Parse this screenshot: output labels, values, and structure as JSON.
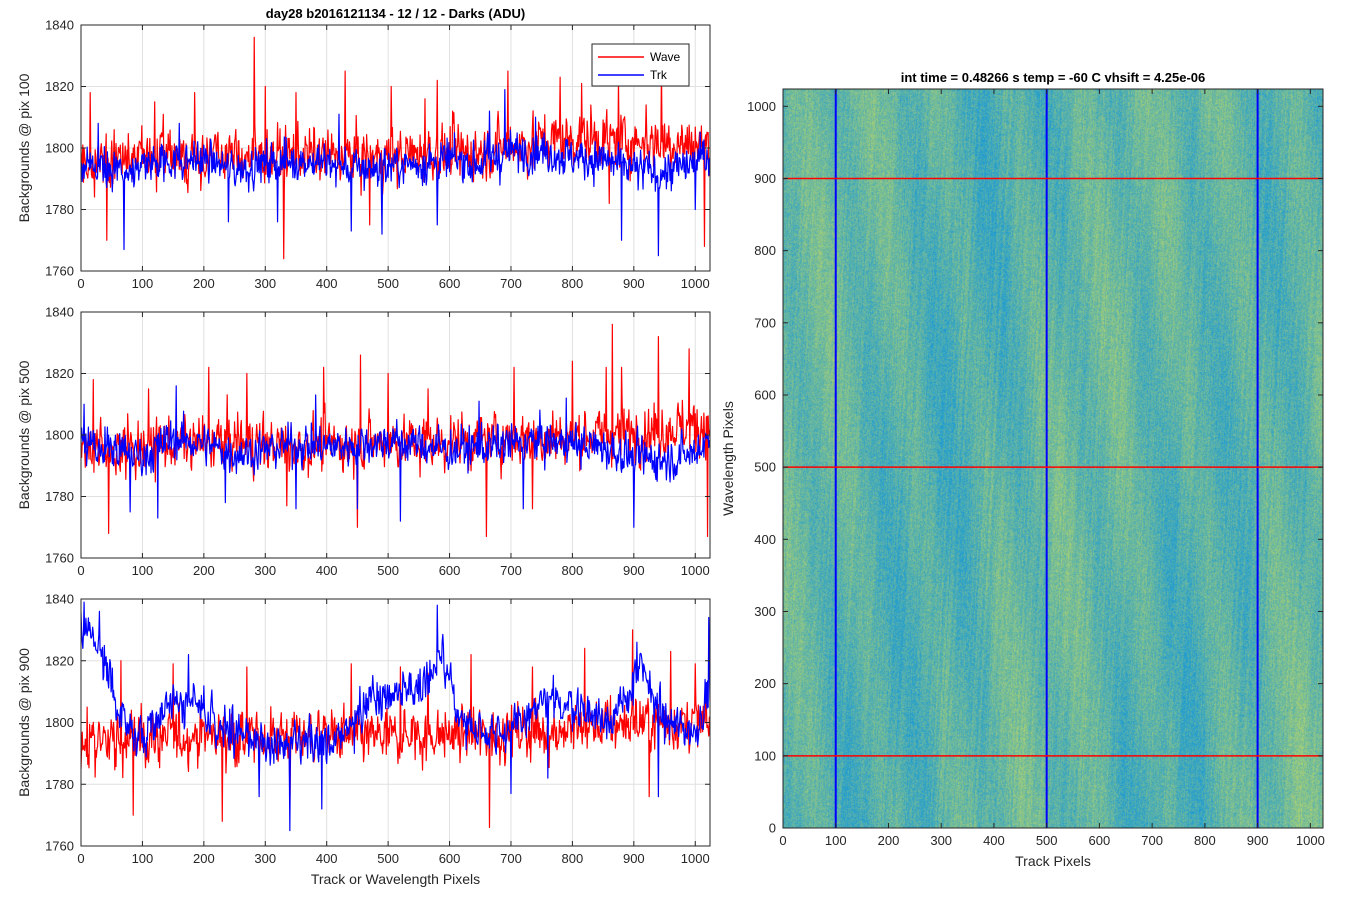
{
  "chart_data": [
    {
      "type": "line",
      "title": "day28 b2016121134 - 12 / 12 - Darks (ADU)",
      "xlabel": "",
      "ylabel": "Backgrounds @ pix 100",
      "xlim": [
        0,
        1024
      ],
      "ylim": [
        1760,
        1840
      ],
      "xticks": [
        0,
        100,
        200,
        300,
        400,
        500,
        600,
        700,
        800,
        900,
        1000
      ],
      "yticks": [
        1760,
        1780,
        1800,
        1820,
        1840
      ],
      "grid": true,
      "legend": "top-right",
      "legend_entries": [
        "Wave",
        "Trk"
      ],
      "series": [
        {
          "name": "Wave",
          "color": "#ff0000",
          "x": [
            0,
            50,
            100,
            150,
            200,
            250,
            300,
            350,
            400,
            450,
            500,
            550,
            600,
            650,
            700,
            750,
            800,
            850,
            900,
            950,
            1000,
            1024
          ],
          "y": [
            1795,
            1796,
            1797,
            1798,
            1797,
            1798,
            1797,
            1798,
            1797,
            1797,
            1797,
            1798,
            1798,
            1799,
            1801,
            1802,
            1803,
            1803,
            1802,
            1802,
            1801,
            1801
          ],
          "noise": 8,
          "spikes": [
            [
              15,
              1818
            ],
            [
              42,
              1770
            ],
            [
              120,
              1815
            ],
            [
              185,
              1818
            ],
            [
              282,
              1836
            ],
            [
              300,
              1820
            ],
            [
              330,
              1764
            ],
            [
              350,
              1818
            ],
            [
              430,
              1825
            ],
            [
              470,
              1775
            ],
            [
              505,
              1820
            ],
            [
              560,
              1816
            ],
            [
              580,
              1822
            ],
            [
              605,
              1812
            ],
            [
              695,
              1825
            ],
            [
              780,
              1823
            ],
            [
              815,
              1821
            ],
            [
              860,
              1782
            ],
            [
              875,
              1822
            ],
            [
              920,
              1814
            ],
            [
              945,
              1826
            ],
            [
              1015,
              1768
            ]
          ]
        },
        {
          "name": "Trk",
          "color": "#0000ff",
          "x": [
            0,
            50,
            100,
            150,
            200,
            250,
            300,
            350,
            400,
            450,
            500,
            550,
            600,
            650,
            700,
            750,
            800,
            850,
            900,
            950,
            1000,
            1024
          ],
          "y": [
            1794,
            1792,
            1794,
            1796,
            1796,
            1793,
            1795,
            1796,
            1795,
            1793,
            1794,
            1795,
            1796,
            1795,
            1799,
            1799,
            1797,
            1796,
            1793,
            1792,
            1795,
            1799
          ],
          "noise": 6,
          "spikes": [
            [
              28,
              1808
            ],
            [
              70,
              1767
            ],
            [
              160,
              1808
            ],
            [
              240,
              1776
            ],
            [
              320,
              1776
            ],
            [
              420,
              1811
            ],
            [
              440,
              1773
            ],
            [
              490,
              1772
            ],
            [
              580,
              1775
            ],
            [
              665,
              1812
            ],
            [
              690,
              1819
            ],
            [
              740,
              1810
            ],
            [
              880,
              1770
            ],
            [
              940,
              1765
            ],
            [
              1000,
              1780
            ]
          ]
        }
      ]
    },
    {
      "type": "line",
      "title": "",
      "xlabel": "",
      "ylabel": "Backgrounds @ pix 500",
      "xlim": [
        0,
        1024
      ],
      "ylim": [
        1760,
        1840
      ],
      "xticks": [
        0,
        100,
        200,
        300,
        400,
        500,
        600,
        700,
        800,
        900,
        1000
      ],
      "yticks": [
        1760,
        1780,
        1800,
        1820,
        1840
      ],
      "grid": true,
      "series": [
        {
          "name": "Wave",
          "color": "#ff0000",
          "x": [
            0,
            50,
            100,
            150,
            200,
            250,
            300,
            350,
            400,
            450,
            500,
            550,
            600,
            650,
            700,
            750,
            800,
            850,
            900,
            950,
            1000,
            1024
          ],
          "y": [
            1795,
            1796,
            1796,
            1797,
            1797,
            1798,
            1797,
            1796,
            1797,
            1797,
            1798,
            1797,
            1798,
            1798,
            1799,
            1799,
            1800,
            1800,
            1801,
            1802,
            1803,
            1803
          ],
          "noise": 8,
          "spikes": [
            [
              20,
              1818
            ],
            [
              45,
              1768
            ],
            [
              110,
              1815
            ],
            [
              208,
              1822
            ],
            [
              270,
              1820
            ],
            [
              335,
              1777
            ],
            [
              395,
              1822
            ],
            [
              450,
              1770
            ],
            [
              455,
              1826
            ],
            [
              500,
              1820
            ],
            [
              565,
              1815
            ],
            [
              660,
              1767
            ],
            [
              705,
              1822
            ],
            [
              735,
              1776
            ],
            [
              800,
              1824
            ],
            [
              855,
              1822
            ],
            [
              865,
              1836
            ],
            [
              880,
              1822
            ],
            [
              940,
              1832
            ],
            [
              990,
              1828
            ],
            [
              1020,
              1767
            ]
          ]
        },
        {
          "name": "Trk",
          "color": "#0000ff",
          "x": [
            0,
            50,
            100,
            150,
            200,
            250,
            300,
            350,
            400,
            450,
            500,
            550,
            600,
            650,
            700,
            750,
            800,
            850,
            900,
            950,
            1000,
            1024
          ],
          "y": [
            1797,
            1795,
            1793,
            1799,
            1797,
            1794,
            1795,
            1797,
            1796,
            1797,
            1798,
            1797,
            1795,
            1796,
            1797,
            1798,
            1797,
            1796,
            1793,
            1792,
            1794,
            1799
          ],
          "noise": 6,
          "spikes": [
            [
              5,
              1810
            ],
            [
              80,
              1775
            ],
            [
              125,
              1773
            ],
            [
              155,
              1816
            ],
            [
              235,
              1778
            ],
            [
              350,
              1776
            ],
            [
              382,
              1813
            ],
            [
              450,
              1776
            ],
            [
              520,
              1772
            ],
            [
              648,
              1811
            ],
            [
              720,
              1776
            ],
            [
              790,
              1812
            ],
            [
              900,
              1770
            ],
            [
              1005,
              1800
            ]
          ]
        }
      ]
    },
    {
      "type": "line",
      "title": "",
      "xlabel": "Track or Wavelength Pixels",
      "ylabel": "Backgrounds @ pix 900",
      "xlim": [
        0,
        1024
      ],
      "ylim": [
        1760,
        1840
      ],
      "xticks": [
        0,
        100,
        200,
        300,
        400,
        500,
        600,
        700,
        800,
        900,
        1000
      ],
      "yticks": [
        1760,
        1780,
        1800,
        1820,
        1840
      ],
      "grid": true,
      "series": [
        {
          "name": "Wave",
          "color": "#ff0000",
          "x": [
            0,
            50,
            100,
            150,
            200,
            250,
            300,
            350,
            400,
            450,
            500,
            550,
            600,
            650,
            700,
            750,
            800,
            850,
            900,
            950,
            1000,
            1024
          ],
          "y": [
            1794,
            1794,
            1795,
            1795,
            1796,
            1795,
            1795,
            1796,
            1796,
            1795,
            1795,
            1796,
            1796,
            1796,
            1797,
            1797,
            1798,
            1799,
            1800,
            1800,
            1800,
            1799
          ],
          "noise": 8,
          "spikes": [
            [
              10,
              1805
            ],
            [
              65,
              1820
            ],
            [
              85,
              1770
            ],
            [
              150,
              1819
            ],
            [
              230,
              1768
            ],
            [
              270,
              1818
            ],
            [
              340,
              1772
            ],
            [
              440,
              1819
            ],
            [
              520,
              1818
            ],
            [
              565,
              1816
            ],
            [
              635,
              1822
            ],
            [
              665,
              1766
            ],
            [
              735,
              1818
            ],
            [
              820,
              1824
            ],
            [
              898,
              1830
            ],
            [
              925,
              1776
            ],
            [
              960,
              1823
            ],
            [
              1000,
              1819
            ]
          ]
        },
        {
          "name": "Trk",
          "color": "#0000ff",
          "x": [
            0,
            20,
            50,
            80,
            100,
            150,
            200,
            250,
            300,
            350,
            400,
            430,
            470,
            550,
            590,
            620,
            650,
            700,
            750,
            800,
            850,
            880,
            910,
            950,
            1000,
            1024
          ],
          "y": [
            1830,
            1828,
            1812,
            1796,
            1795,
            1808,
            1804,
            1797,
            1793,
            1792,
            1794,
            1796,
            1808,
            1812,
            1820,
            1800,
            1798,
            1797,
            1806,
            1806,
            1801,
            1804,
            1818,
            1800,
            1797,
            1812
          ],
          "noise": 6,
          "spikes": [
            [
              5,
              1839
            ],
            [
              30,
              1836
            ],
            [
              175,
              1822
            ],
            [
              290,
              1776
            ],
            [
              340,
              1765
            ],
            [
              392,
              1772
            ],
            [
              445,
              1790
            ],
            [
              580,
              1838
            ],
            [
              700,
              1777
            ],
            [
              760,
              1782
            ],
            [
              905,
              1826
            ],
            [
              940,
              1776
            ],
            [
              1022,
              1834
            ]
          ]
        }
      ]
    },
    {
      "type": "heatmap",
      "title": "int time = 0.48266 s    temp = -60 C    vhsift = 4.25e-06",
      "xlabel": "Track Pixels",
      "ylabel": "Wavelength Pixels",
      "xlim": [
        0,
        1024
      ],
      "ylim": [
        0,
        1024
      ],
      "xticks": [
        0,
        100,
        200,
        300,
        400,
        500,
        600,
        700,
        800,
        900,
        1000
      ],
      "yticks": [
        0,
        100,
        200,
        300,
        400,
        500,
        600,
        700,
        800,
        900,
        1000
      ],
      "colormap_low": "#1f9bd2",
      "colormap_high": "#b9d66a",
      "vertical_lines": [
        {
          "x": 100,
          "color": "#0000ff"
        },
        {
          "x": 500,
          "color": "#0000ff"
        },
        {
          "x": 900,
          "color": "#0000ff"
        }
      ],
      "horizontal_lines": [
        {
          "y": 100,
          "color": "#ff0000"
        },
        {
          "y": 500,
          "color": "#ff0000"
        },
        {
          "y": 900,
          "color": "#ff0000"
        }
      ]
    }
  ]
}
